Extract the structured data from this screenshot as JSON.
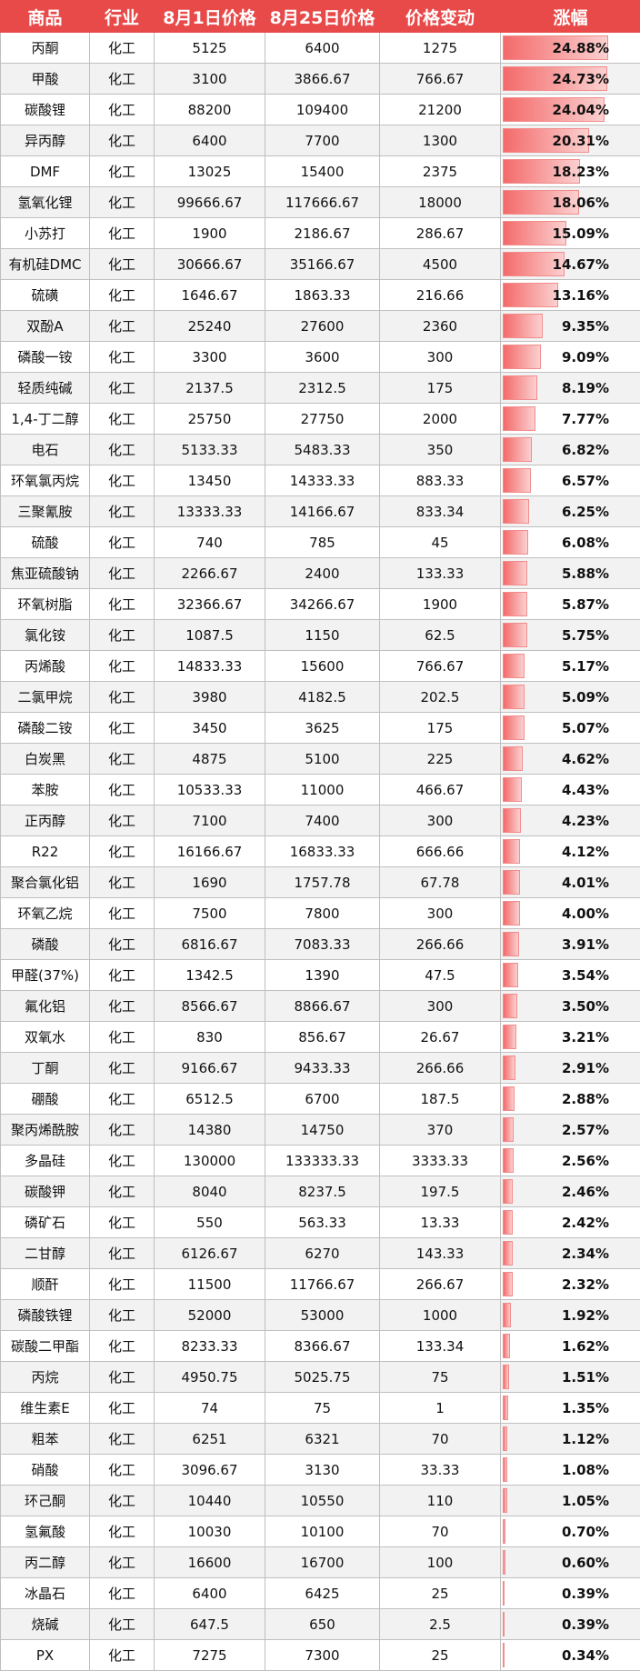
{
  "headers": [
    "商品",
    "行业",
    "8月1日价格",
    "8月25日价格",
    "价格变动",
    "涨幅"
  ],
  "max_pct": 24.88,
  "rows": [
    [
      "丙酮",
      "化工",
      "5125",
      "6400",
      "1275",
      "24.88%"
    ],
    [
      "甲酸",
      "化工",
      "3100",
      "3866.67",
      "766.67",
      "24.73%"
    ],
    [
      "碳酸锂",
      "化工",
      "88200",
      "109400",
      "21200",
      "24.04%"
    ],
    [
      "异丙醇",
      "化工",
      "6400",
      "7700",
      "1300",
      "20.31%"
    ],
    [
      "DMF",
      "化工",
      "13025",
      "15400",
      "2375",
      "18.23%"
    ],
    [
      "氢氧化锂",
      "化工",
      "99666.67",
      "117666.67",
      "18000",
      "18.06%"
    ],
    [
      "小苏打",
      "化工",
      "1900",
      "2186.67",
      "286.67",
      "15.09%"
    ],
    [
      "有机硅DMC",
      "化工",
      "30666.67",
      "35166.67",
      "4500",
      "14.67%"
    ],
    [
      "硫磺",
      "化工",
      "1646.67",
      "1863.33",
      "216.66",
      "13.16%"
    ],
    [
      "双酚A",
      "化工",
      "25240",
      "27600",
      "2360",
      "9.35%"
    ],
    [
      "磷酸一铵",
      "化工",
      "3300",
      "3600",
      "300",
      "9.09%"
    ],
    [
      "轻质纯碱",
      "化工",
      "2137.5",
      "2312.5",
      "175",
      "8.19%"
    ],
    [
      "1,4-丁二醇",
      "化工",
      "25750",
      "27750",
      "2000",
      "7.77%"
    ],
    [
      "电石",
      "化工",
      "5133.33",
      "5483.33",
      "350",
      "6.82%"
    ],
    [
      "环氧氯丙烷",
      "化工",
      "13450",
      "14333.33",
      "883.33",
      "6.57%"
    ],
    [
      "三聚氰胺",
      "化工",
      "13333.33",
      "14166.67",
      "833.34",
      "6.25%"
    ],
    [
      "硫酸",
      "化工",
      "740",
      "785",
      "45",
      "6.08%"
    ],
    [
      "焦亚硫酸钠",
      "化工",
      "2266.67",
      "2400",
      "133.33",
      "5.88%"
    ],
    [
      "环氧树脂",
      "化工",
      "32366.67",
      "34266.67",
      "1900",
      "5.87%"
    ],
    [
      "氯化铵",
      "化工",
      "1087.5",
      "1150",
      "62.5",
      "5.75%"
    ],
    [
      "丙烯酸",
      "化工",
      "14833.33",
      "15600",
      "766.67",
      "5.17%"
    ],
    [
      "二氯甲烷",
      "化工",
      "3980",
      "4182.5",
      "202.5",
      "5.09%"
    ],
    [
      "磷酸二铵",
      "化工",
      "3450",
      "3625",
      "175",
      "5.07%"
    ],
    [
      "白炭黑",
      "化工",
      "4875",
      "5100",
      "225",
      "4.62%"
    ],
    [
      "苯胺",
      "化工",
      "10533.33",
      "11000",
      "466.67",
      "4.43%"
    ],
    [
      "正丙醇",
      "化工",
      "7100",
      "7400",
      "300",
      "4.23%"
    ],
    [
      "R22",
      "化工",
      "16166.67",
      "16833.33",
      "666.66",
      "4.12%"
    ],
    [
      "聚合氯化铝",
      "化工",
      "1690",
      "1757.78",
      "67.78",
      "4.01%"
    ],
    [
      "环氧乙烷",
      "化工",
      "7500",
      "7800",
      "300",
      "4.00%"
    ],
    [
      "磷酸",
      "化工",
      "6816.67",
      "7083.33",
      "266.66",
      "3.91%"
    ],
    [
      "甲醛(37%)",
      "化工",
      "1342.5",
      "1390",
      "47.5",
      "3.54%"
    ],
    [
      "氟化铝",
      "化工",
      "8566.67",
      "8866.67",
      "300",
      "3.50%"
    ],
    [
      "双氧水",
      "化工",
      "830",
      "856.67",
      "26.67",
      "3.21%"
    ],
    [
      "丁酮",
      "化工",
      "9166.67",
      "9433.33",
      "266.66",
      "2.91%"
    ],
    [
      "硼酸",
      "化工",
      "6512.5",
      "6700",
      "187.5",
      "2.88%"
    ],
    [
      "聚丙烯酰胺",
      "化工",
      "14380",
      "14750",
      "370",
      "2.57%"
    ],
    [
      "多晶硅",
      "化工",
      "130000",
      "133333.33",
      "3333.33",
      "2.56%"
    ],
    [
      "碳酸钾",
      "化工",
      "8040",
      "8237.5",
      "197.5",
      "2.46%"
    ],
    [
      "磷矿石",
      "化工",
      "550",
      "563.33",
      "13.33",
      "2.42%"
    ],
    [
      "二甘醇",
      "化工",
      "6126.67",
      "6270",
      "143.33",
      "2.34%"
    ],
    [
      "顺酐",
      "化工",
      "11500",
      "11766.67",
      "266.67",
      "2.32%"
    ],
    [
      "磷酸铁锂",
      "化工",
      "52000",
      "53000",
      "1000",
      "1.92%"
    ],
    [
      "碳酸二甲酯",
      "化工",
      "8233.33",
      "8366.67",
      "133.34",
      "1.62%"
    ],
    [
      "丙烷",
      "化工",
      "4950.75",
      "5025.75",
      "75",
      "1.51%"
    ],
    [
      "维生素E",
      "化工",
      "74",
      "75",
      "1",
      "1.35%"
    ],
    [
      "粗苯",
      "化工",
      "6251",
      "6321",
      "70",
      "1.12%"
    ],
    [
      "硝酸",
      "化工",
      "3096.67",
      "3130",
      "33.33",
      "1.08%"
    ],
    [
      "环己酮",
      "化工",
      "10440",
      "10550",
      "110",
      "1.05%"
    ],
    [
      "氢氟酸",
      "化工",
      "10030",
      "10100",
      "70",
      "0.70%"
    ],
    [
      "丙二醇",
      "化工",
      "16600",
      "16700",
      "100",
      "0.60%"
    ],
    [
      "冰晶石",
      "化工",
      "6400",
      "6425",
      "25",
      "0.39%"
    ],
    [
      "烧碱",
      "化工",
      "647.5",
      "650",
      "2.5",
      "0.39%"
    ],
    [
      "PX",
      "化工",
      "7275",
      "7300",
      "25",
      "0.34%"
    ]
  ],
  "colors": {
    "header_bg": "#e84a4a",
    "bar": "#f46a6a"
  }
}
